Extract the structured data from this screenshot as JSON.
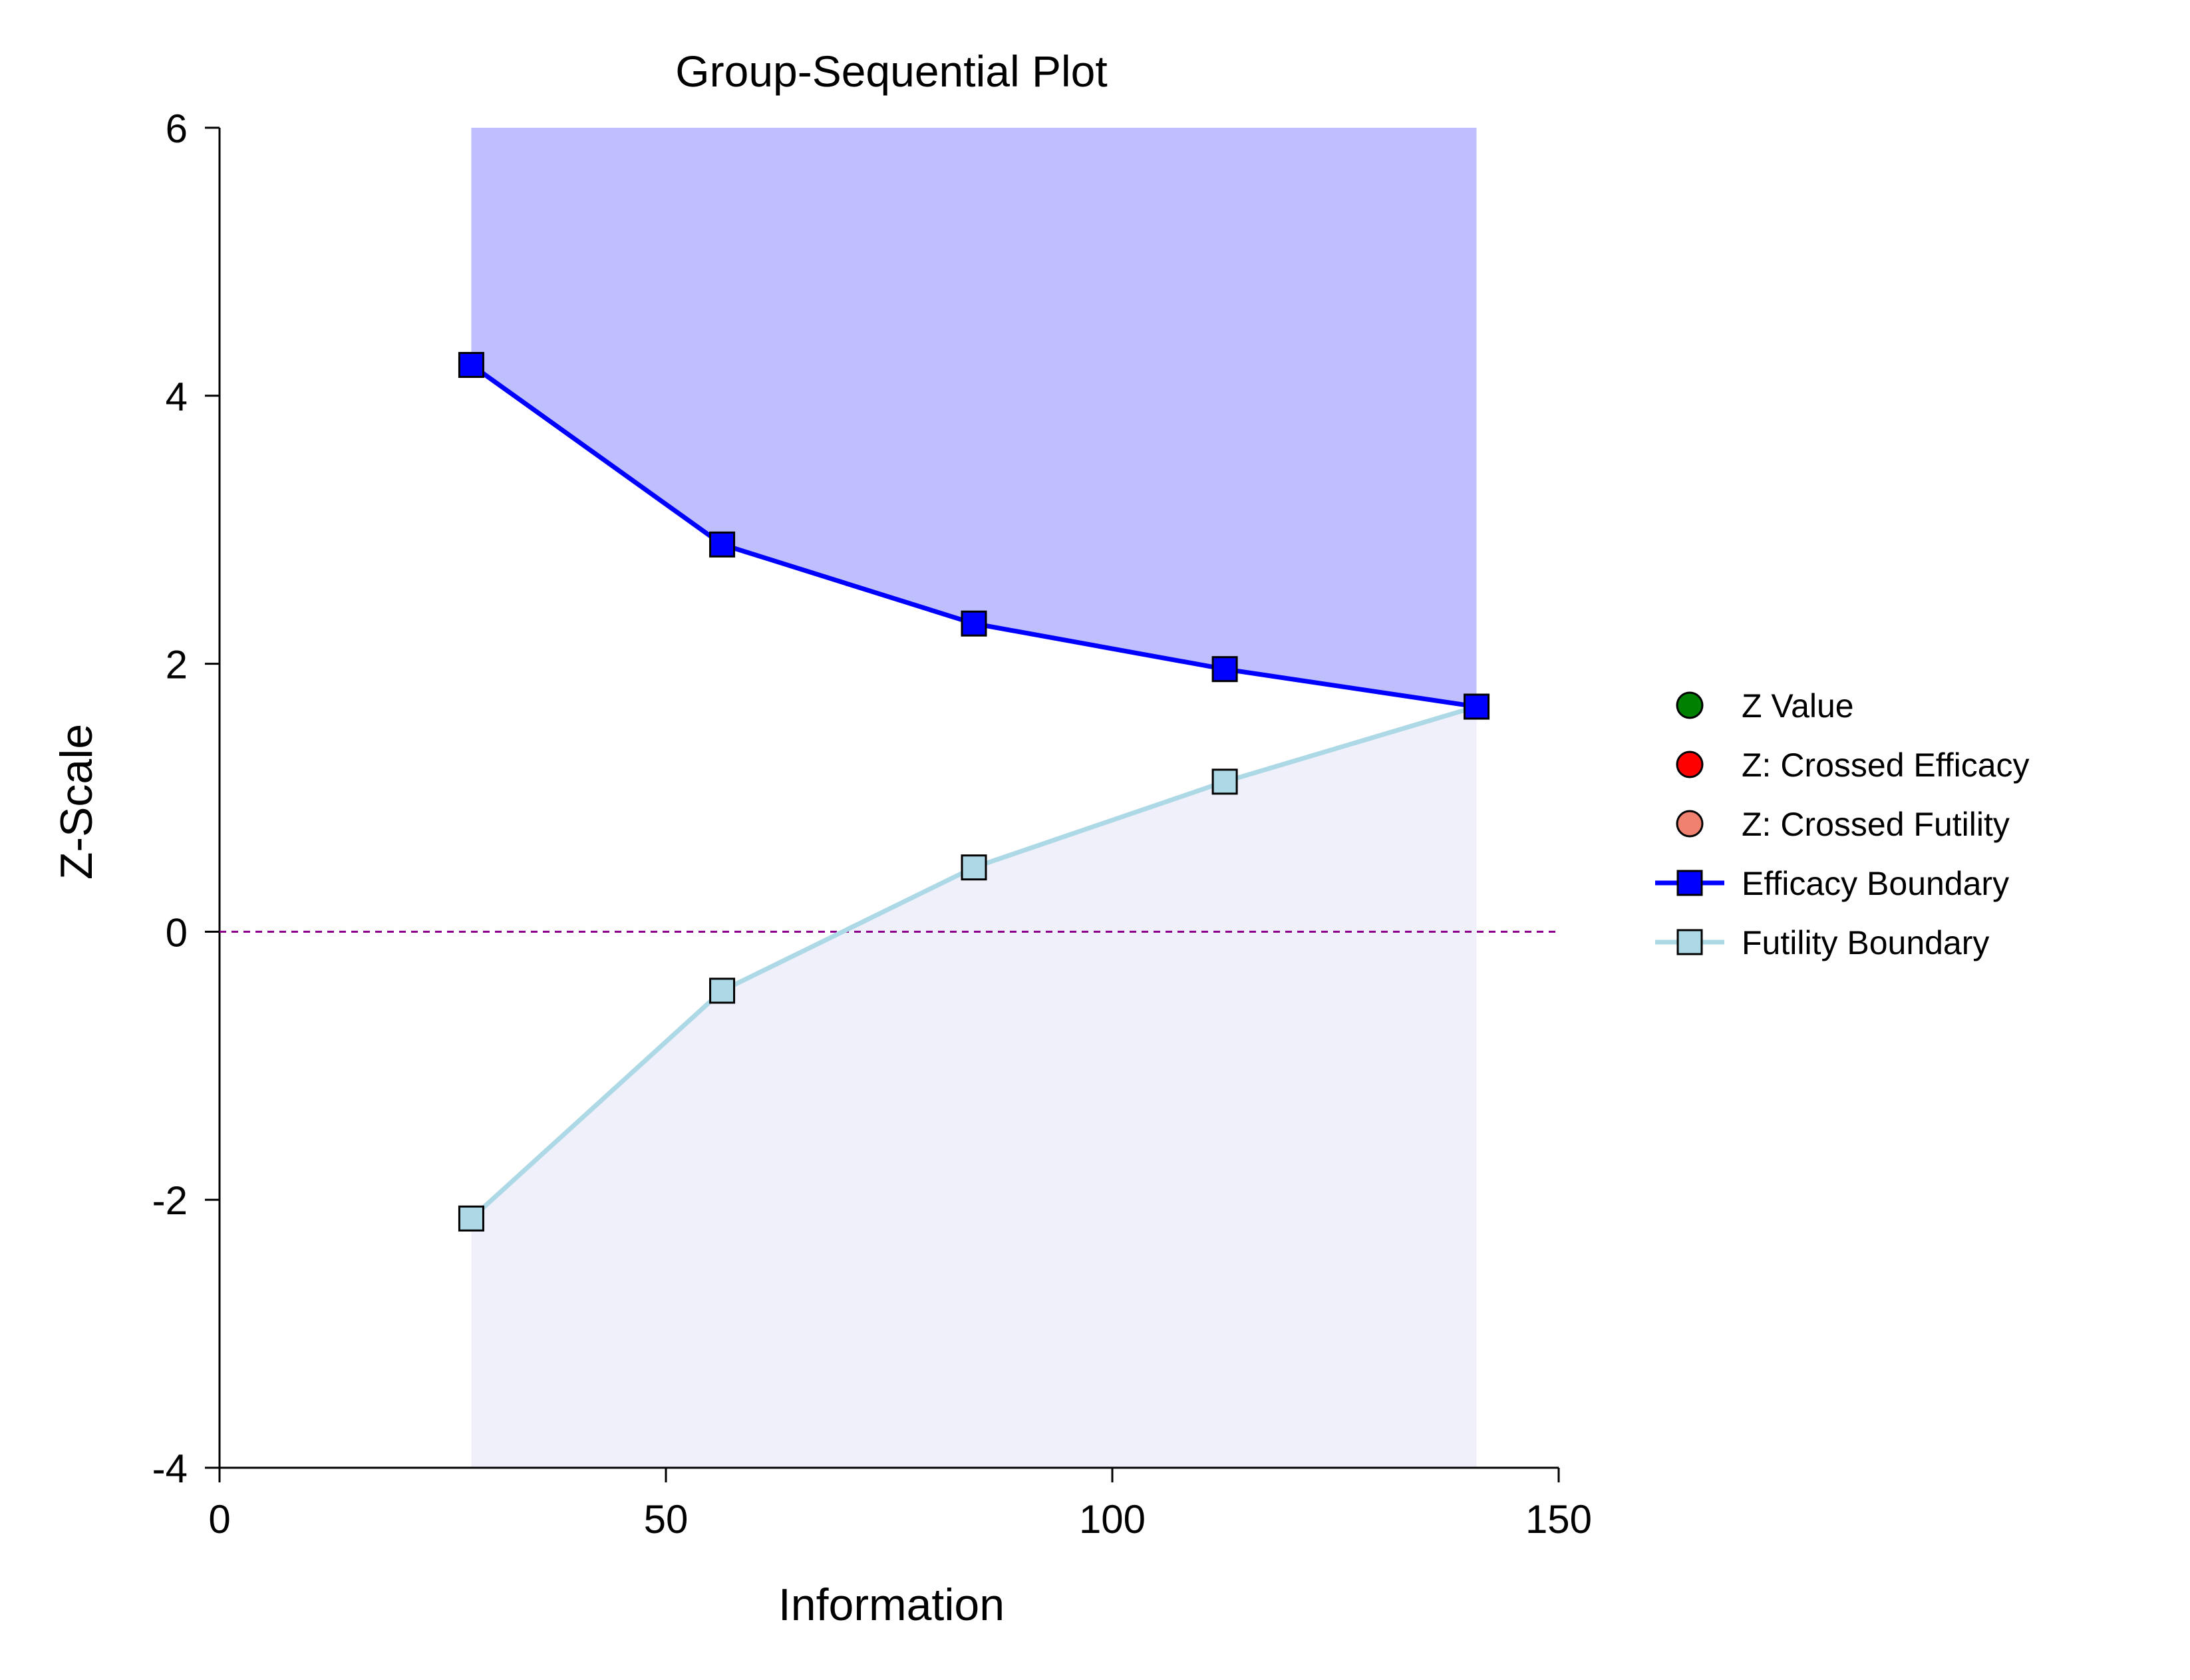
{
  "chart_data": {
    "type": "line",
    "title": "Group-Sequential Plot",
    "xlabel": "Information",
    "ylabel": "Z-Scale",
    "xlim": [
      0,
      150
    ],
    "ylim": [
      -4,
      6
    ],
    "xticks": [
      0,
      50,
      100,
      150
    ],
    "yticks": [
      -4,
      -2,
      0,
      2,
      4,
      6
    ],
    "grid": false,
    "legend_position": "right",
    "reference_line": {
      "y": 0,
      "style": "dashed",
      "color": "#8b008b"
    },
    "shading": {
      "efficacy_region_color": "#bfbffe",
      "futility_region_color": "#f0f0fb"
    },
    "legend": [
      {
        "label": "Z Value",
        "marker": "circle",
        "color": "#008000"
      },
      {
        "label": "Z: Crossed Efficacy",
        "marker": "circle",
        "color": "#ff0000"
      },
      {
        "label": "Z: Crossed Futility",
        "marker": "circle",
        "color": "#f08070"
      },
      {
        "label": "Efficacy Boundary",
        "marker": "square",
        "color": "#0000ff",
        "line": true
      },
      {
        "label": "Futility Boundary",
        "marker": "square",
        "color": "#add8e6",
        "line": true
      }
    ],
    "series": [
      {
        "name": "Efficacy Boundary",
        "color": "#0000ff",
        "x": [
          28.2,
          56.3,
          84.5,
          112.6,
          140.8
        ],
        "y": [
          4.23,
          2.89,
          2.3,
          1.96,
          1.68
        ]
      },
      {
        "name": "Futility Boundary",
        "color": "#add8e6",
        "x": [
          28.2,
          56.3,
          84.5,
          112.6,
          140.8
        ],
        "y": [
          -2.14,
          -0.44,
          0.48,
          1.12,
          1.68
        ]
      }
    ]
  }
}
